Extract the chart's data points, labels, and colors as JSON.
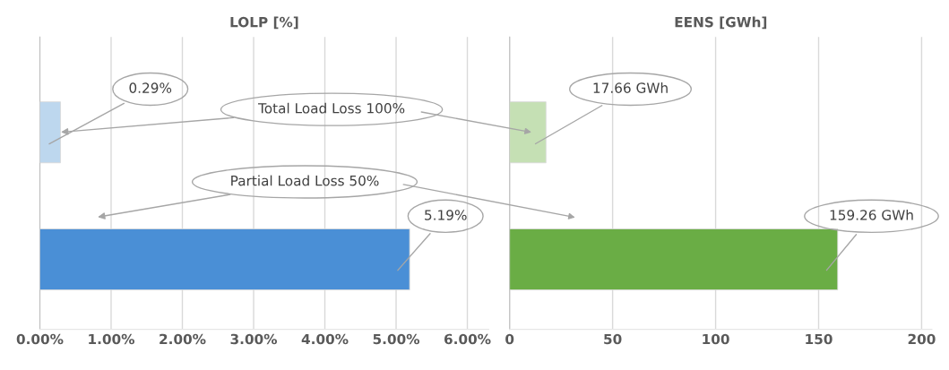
{
  "chart_data": [
    {
      "type": "bar",
      "orientation": "horizontal",
      "title": "LOLP [%]",
      "categories": [
        null,
        null
      ],
      "values": [
        0.29,
        5.19
      ],
      "colors": [
        "#bdd7ee",
        "#4a8fd6"
      ],
      "value_labels": [
        "0.29%",
        "5.19%"
      ],
      "xlim": [
        0,
        6.3
      ],
      "xticks": [
        {
          "value": 0,
          "label": "0.00%"
        },
        {
          "value": 1,
          "label": "1.00%"
        },
        {
          "value": 2,
          "label": "2.00%"
        },
        {
          "value": 3,
          "label": "3.00%"
        },
        {
          "value": 4,
          "label": "4.00%"
        },
        {
          "value": 5,
          "label": "5.00%"
        },
        {
          "value": 6,
          "label": "6.00%"
        }
      ],
      "grid": "x",
      "tick_labels": "x",
      "annotations": [
        "Total Load Loss 100%",
        "Partial Load Loss 50%"
      ]
    },
    {
      "type": "bar",
      "orientation": "horizontal",
      "title": "EENS [GWh]",
      "categories": [
        null,
        null
      ],
      "values": [
        17.66,
        159.26
      ],
      "colors": [
        "#c5e0b4",
        "#6aad45"
      ],
      "value_labels": [
        "17.66 GWh",
        "159.26 GWh"
      ],
      "xlim": [
        0,
        205
      ],
      "xticks": [
        0,
        50,
        100,
        150,
        200
      ],
      "grid": "x",
      "tick_labels": "x"
    }
  ]
}
